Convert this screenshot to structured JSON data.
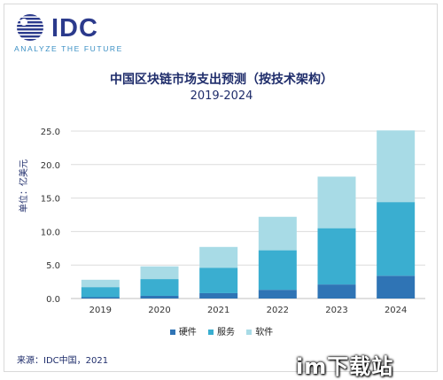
{
  "logo": {
    "word": "IDC",
    "tagline": "ANALYZE THE FUTURE"
  },
  "colors": {
    "hardware": "#2f74b5",
    "services": "#3aaed0",
    "software": "#a8dbe6",
    "navy": "#1f2d6b",
    "grid": "#dcdcdc"
  },
  "legend": {
    "hardware": "硬件",
    "services": "服务",
    "software": "软件"
  },
  "source": "来源：IDC中国，2021",
  "watermark": "im下载站",
  "chart_data": {
    "type": "bar",
    "stacked": true,
    "title": "中国区块链市场支出预测（按技术架构）",
    "subtitle": "2019-2024",
    "ylabel": "单位：亿美元",
    "xlabel": "",
    "categories": [
      "2019",
      "2020",
      "2021",
      "2022",
      "2023",
      "2024"
    ],
    "ylim": [
      0,
      25
    ],
    "yticks": [
      "0.0",
      "5.0",
      "10.0",
      "15.0",
      "20.0",
      "25.0"
    ],
    "grid": true,
    "legend_position": "bottom",
    "series": [
      {
        "name": "硬件",
        "values": [
          0.2,
          0.4,
          0.8,
          1.3,
          2.1,
          3.4
        ],
        "color": "#2f74b5"
      },
      {
        "name": "服务",
        "values": [
          1.5,
          2.5,
          3.8,
          5.9,
          8.4,
          11.0
        ],
        "color": "#3aaed0"
      },
      {
        "name": "软件",
        "values": [
          1.1,
          1.9,
          3.1,
          5.0,
          7.7,
          10.7
        ],
        "color": "#a8dbe6"
      }
    ]
  }
}
